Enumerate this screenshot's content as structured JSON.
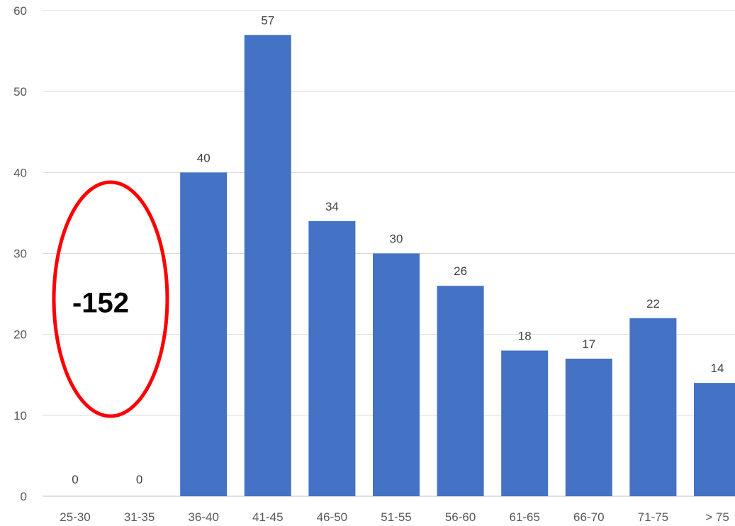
{
  "chart_data": {
    "type": "bar",
    "categories": [
      "25-30",
      "31-35",
      "36-40",
      "41-45",
      "46-50",
      "51-55",
      "56-60",
      "61-65",
      "66-70",
      "71-75",
      "> 75"
    ],
    "values": [
      0,
      0,
      40,
      57,
      34,
      30,
      26,
      18,
      17,
      22,
      14
    ],
    "ylim": [
      0,
      60
    ],
    "yticks": [
      0,
      10,
      20,
      30,
      40,
      50,
      60
    ],
    "grid": true,
    "legend": "none",
    "bar_color": "#4472c4",
    "data_labels": true,
    "annotation": {
      "text": "-152",
      "shape": "ellipse",
      "color": "#ff0000",
      "covers_categories": [
        "25-30",
        "31-35"
      ]
    }
  }
}
